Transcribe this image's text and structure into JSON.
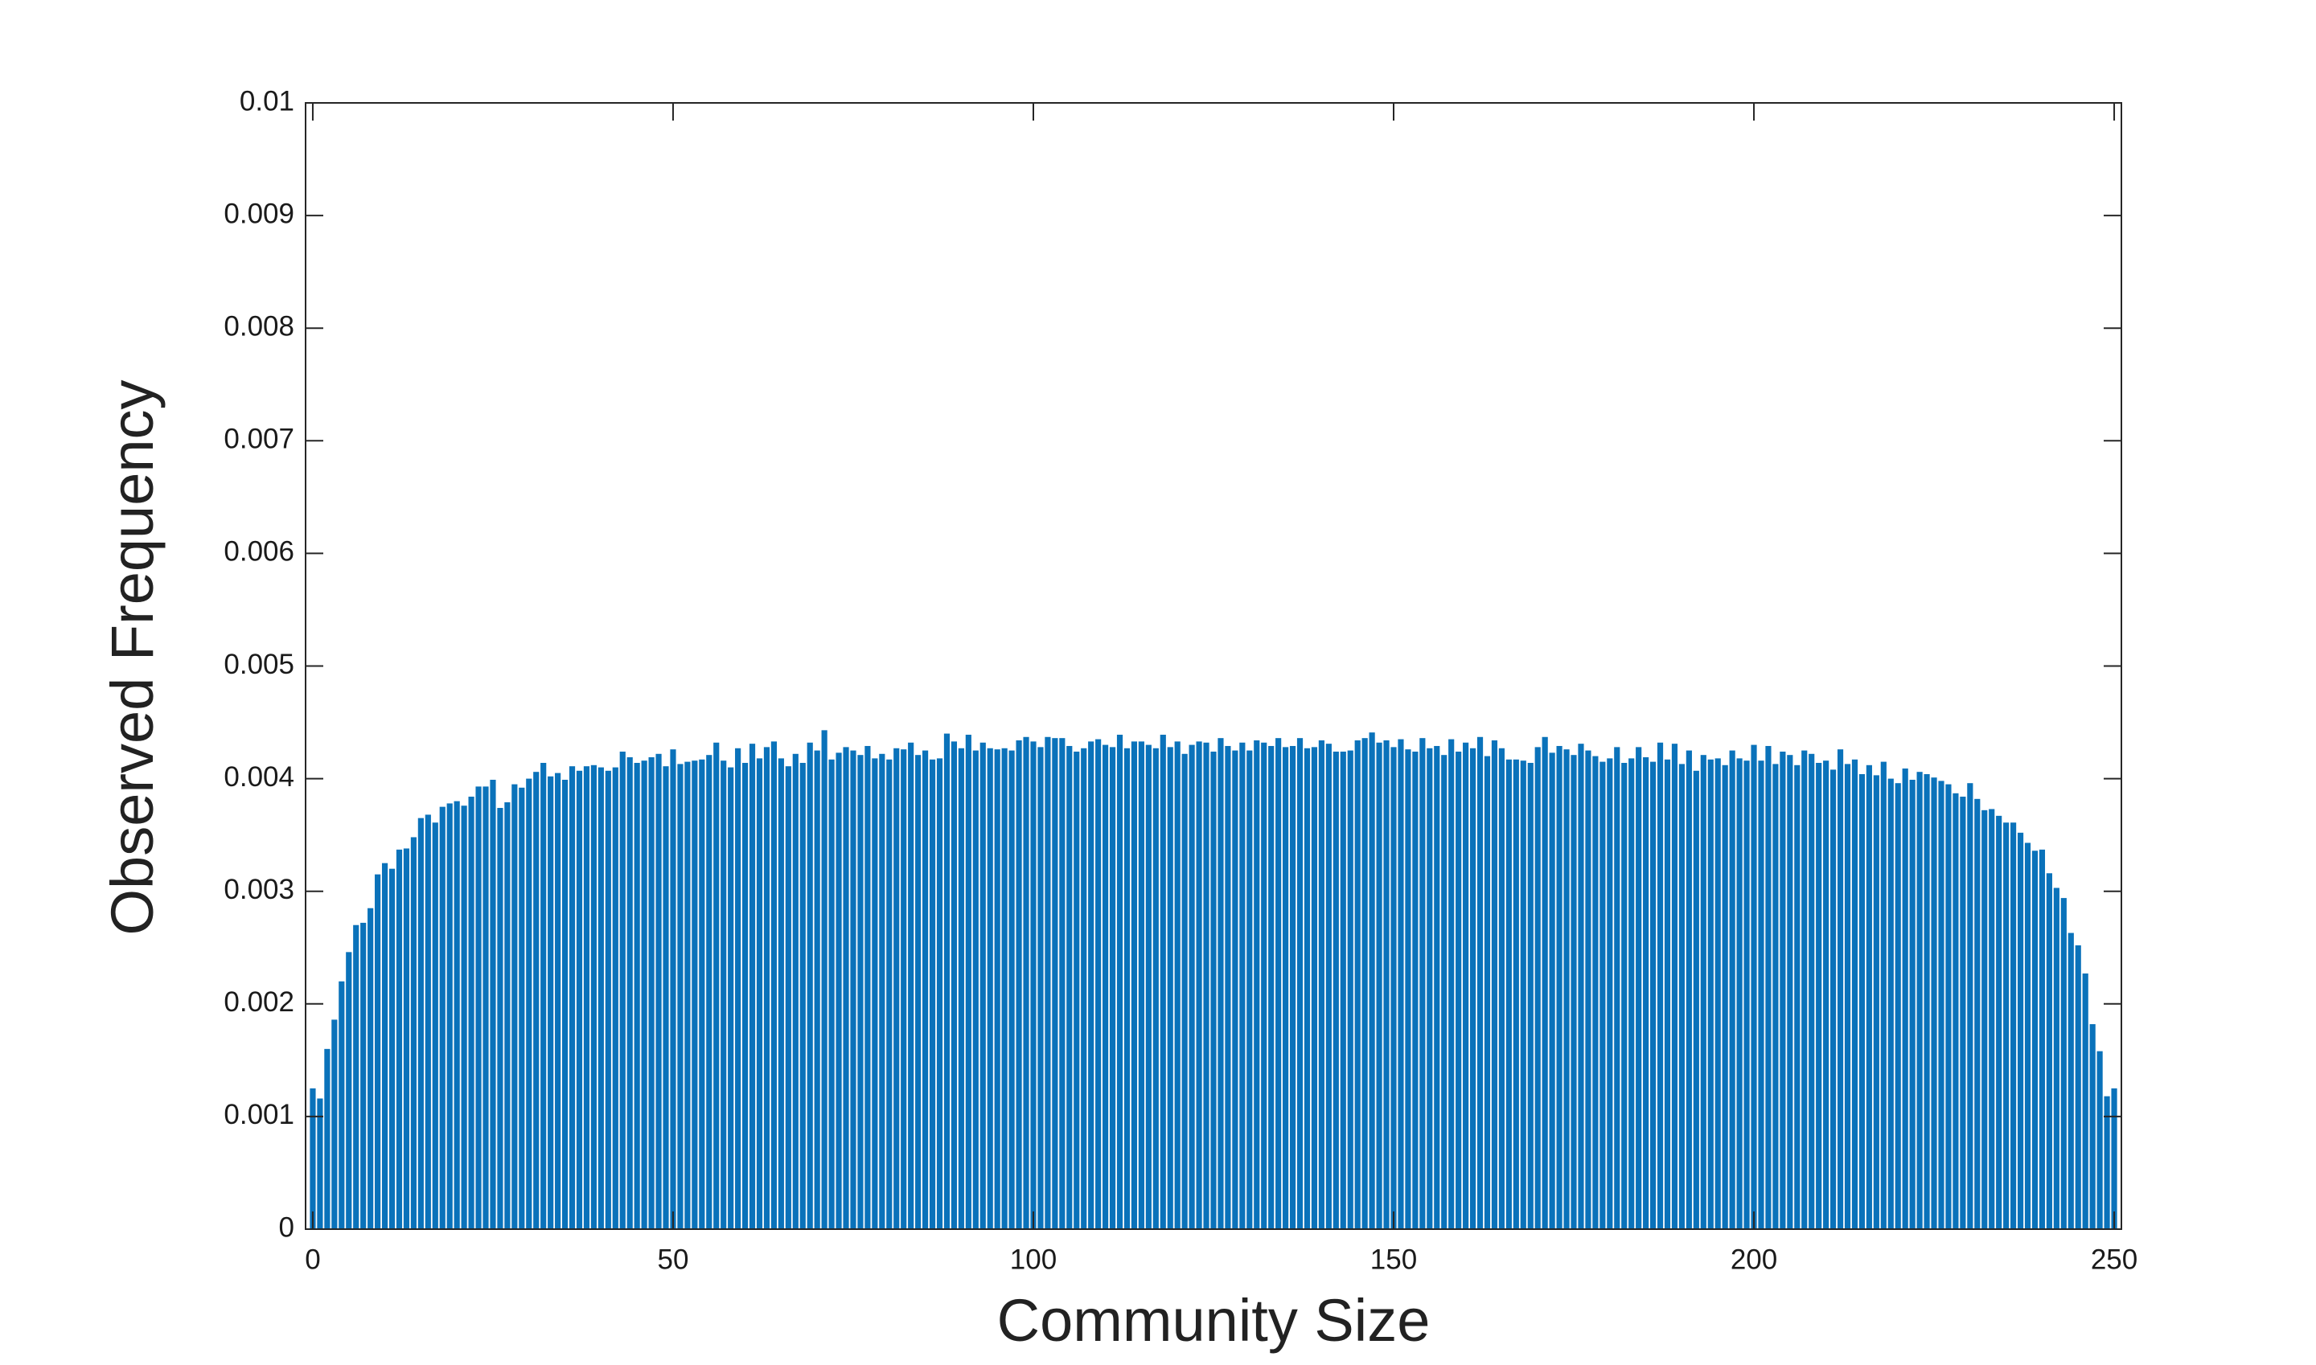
{
  "chart_data": {
    "type": "bar",
    "xlabel": "Community Size",
    "ylabel": "Observed Frequency",
    "color": "#0a72ba",
    "xlim": [
      -1,
      251
    ],
    "xticks": [
      0,
      50,
      100,
      150,
      200,
      250
    ],
    "ylim": [
      0,
      0.01
    ],
    "yticks": [
      0,
      0.001,
      0.002,
      0.003,
      0.004,
      0.005,
      0.006,
      0.007,
      0.008,
      0.009,
      0.01
    ],
    "x": [
      0,
      1,
      2,
      3,
      4,
      5,
      6,
      7,
      8,
      9,
      10,
      11,
      12,
      13,
      14,
      15,
      16,
      17,
      18,
      19,
      20,
      21,
      22,
      23,
      24,
      25,
      26,
      27,
      28,
      29,
      30,
      31,
      32,
      33,
      34,
      35,
      36,
      37,
      38,
      39,
      40,
      41,
      42,
      43,
      44,
      45,
      46,
      47,
      48,
      49,
      50,
      51,
      52,
      53,
      54,
      55,
      56,
      57,
      58,
      59,
      60,
      61,
      62,
      63,
      64,
      65,
      66,
      67,
      68,
      69,
      70,
      71,
      72,
      73,
      74,
      75,
      76,
      77,
      78,
      79,
      80,
      81,
      82,
      83,
      84,
      85,
      86,
      87,
      88,
      89,
      90,
      91,
      92,
      93,
      94,
      95,
      96,
      97,
      98,
      99,
      100,
      101,
      102,
      103,
      104,
      105,
      106,
      107,
      108,
      109,
      110,
      111,
      112,
      113,
      114,
      115,
      116,
      117,
      118,
      119,
      120,
      121,
      122,
      123,
      124,
      125,
      126,
      127,
      128,
      129,
      130,
      131,
      132,
      133,
      134,
      135,
      136,
      137,
      138,
      139,
      140,
      141,
      142,
      143,
      144,
      145,
      146,
      147,
      148,
      149,
      150,
      151,
      152,
      153,
      154,
      155,
      156,
      157,
      158,
      159,
      160,
      161,
      162,
      163,
      164,
      165,
      166,
      167,
      168,
      169,
      170,
      171,
      172,
      173,
      174,
      175,
      176,
      177,
      178,
      179,
      180,
      181,
      182,
      183,
      184,
      185,
      186,
      187,
      188,
      189,
      190,
      191,
      192,
      193,
      194,
      195,
      196,
      197,
      198,
      199,
      200,
      201,
      202,
      203,
      204,
      205,
      206,
      207,
      208,
      209,
      210,
      211,
      212,
      213,
      214,
      215,
      216,
      217,
      218,
      219,
      220,
      221,
      222,
      223,
      224,
      225,
      226,
      227,
      228,
      229,
      230,
      231,
      232,
      233,
      234,
      235,
      236,
      237,
      238,
      239,
      240,
      241,
      242,
      243,
      244,
      245,
      246,
      247,
      248,
      249,
      250
    ],
    "values": [
      0.00125,
      0.00116,
      0.0016,
      0.00186,
      0.0022,
      0.00246,
      0.0027,
      0.00272,
      0.00285,
      0.00315,
      0.00325,
      0.0032,
      0.00337,
      0.00338,
      0.00348,
      0.00365,
      0.00368,
      0.00361,
      0.00375,
      0.00378,
      0.0038,
      0.00376,
      0.00384,
      0.00393,
      0.00393,
      0.00399,
      0.00374,
      0.00379,
      0.00395,
      0.00392,
      0.004,
      0.00406,
      0.00414,
      0.00402,
      0.00405,
      0.00399,
      0.00411,
      0.00407,
      0.00411,
      0.00412,
      0.0041,
      0.00407,
      0.0041,
      0.00424,
      0.00419,
      0.00414,
      0.00416,
      0.00419,
      0.00422,
      0.00411,
      0.00426,
      0.00413,
      0.00415,
      0.00416,
      0.00417,
      0.00421,
      0.00432,
      0.00416,
      0.0041,
      0.00427,
      0.00414,
      0.00431,
      0.00418,
      0.00428,
      0.00433,
      0.00418,
      0.00411,
      0.00422,
      0.00414,
      0.00432,
      0.00425,
      0.00443,
      0.00417,
      0.00423,
      0.00428,
      0.00425,
      0.00421,
      0.00429,
      0.00418,
      0.00422,
      0.00417,
      0.00427,
      0.00426,
      0.00432,
      0.00421,
      0.00425,
      0.00417,
      0.00418,
      0.0044,
      0.00433,
      0.00427,
      0.00439,
      0.00425,
      0.00432,
      0.00427,
      0.00426,
      0.00427,
      0.00425,
      0.00434,
      0.00437,
      0.00433,
      0.00428,
      0.00437,
      0.00436,
      0.00436,
      0.00429,
      0.00424,
      0.00427,
      0.00433,
      0.00435,
      0.0043,
      0.00428,
      0.00439,
      0.00427,
      0.00433,
      0.00433,
      0.0043,
      0.00427,
      0.00439,
      0.00428,
      0.00433,
      0.00422,
      0.0043,
      0.00433,
      0.00432,
      0.00424,
      0.00436,
      0.00429,
      0.00425,
      0.00432,
      0.00425,
      0.00434,
      0.00432,
      0.00429,
      0.00436,
      0.00428,
      0.00429,
      0.00436,
      0.00427,
      0.00428,
      0.00434,
      0.00431,
      0.00424,
      0.00424,
      0.00425,
      0.00434,
      0.00436,
      0.00441,
      0.00432,
      0.00434,
      0.00428,
      0.00435,
      0.00426,
      0.00424,
      0.00436,
      0.00427,
      0.00429,
      0.00421,
      0.00435,
      0.00424,
      0.00432,
      0.00427,
      0.00437,
      0.0042,
      0.00434,
      0.00427,
      0.00417,
      0.00417,
      0.00416,
      0.00414,
      0.00428,
      0.00437,
      0.00423,
      0.00429,
      0.00426,
      0.00421,
      0.00431,
      0.00425,
      0.0042,
      0.00415,
      0.00418,
      0.00428,
      0.00414,
      0.00418,
      0.00428,
      0.00419,
      0.00415,
      0.00432,
      0.00417,
      0.00431,
      0.00413,
      0.00425,
      0.00407,
      0.00421,
      0.00417,
      0.00418,
      0.00412,
      0.00425,
      0.00418,
      0.00416,
      0.0043,
      0.00416,
      0.00429,
      0.00413,
      0.00424,
      0.00421,
      0.00412,
      0.00425,
      0.00422,
      0.00414,
      0.00416,
      0.00408,
      0.00426,
      0.00413,
      0.00417,
      0.00404,
      0.00412,
      0.00403,
      0.00415,
      0.004,
      0.00396,
      0.00409,
      0.00399,
      0.00406,
      0.00404,
      0.00401,
      0.00398,
      0.00395,
      0.00387,
      0.00384,
      0.00396,
      0.00382,
      0.00372,
      0.00373,
      0.00367,
      0.00361,
      0.00361,
      0.00352,
      0.00343,
      0.00336,
      0.00337,
      0.00316,
      0.00303,
      0.00294,
      0.00263,
      0.00252,
      0.00227,
      0.00182,
      0.00158,
      0.00118,
      0.00125
    ]
  }
}
